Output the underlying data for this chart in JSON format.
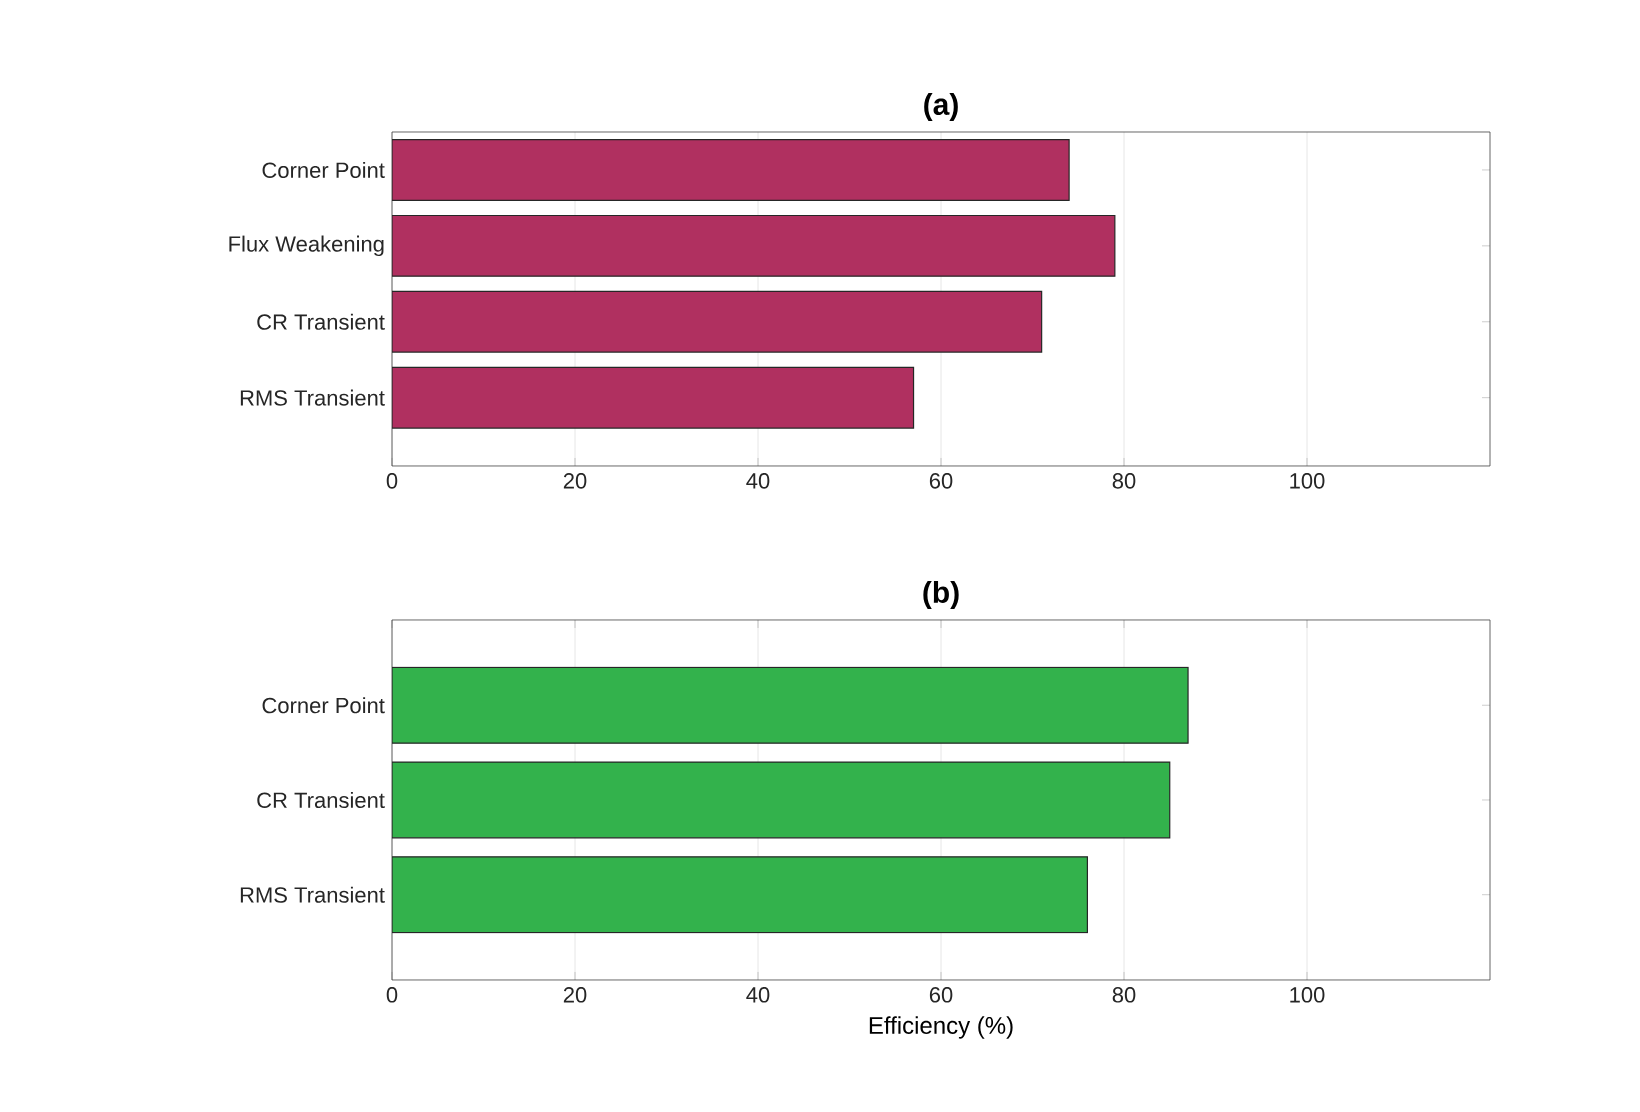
{
  "chart_data": [
    {
      "type": "bar",
      "orientation": "horizontal",
      "title": "**(a)**",
      "categories": [
        "Corner Point",
        "Flux Weakening",
        "CR Transient",
        "RMS Transient"
      ],
      "values": [
        74,
        79,
        71,
        57
      ],
      "color": "#b03060",
      "xlim": [
        0,
        120
      ],
      "xticks": [
        0,
        20,
        40,
        60,
        80,
        100
      ],
      "grid": "x"
    },
    {
      "type": "bar",
      "orientation": "horizontal",
      "title": "**(b)**",
      "xlabel": "Efficiency (%)",
      "categories": [
        "Corner Point",
        "CR Transient",
        "RMS Transient"
      ],
      "values": [
        87,
        85,
        76
      ],
      "color": "#33b24c",
      "xlim": [
        0,
        120
      ],
      "xticks": [
        0,
        20,
        40,
        60,
        80,
        100
      ],
      "grid": "x"
    }
  ]
}
